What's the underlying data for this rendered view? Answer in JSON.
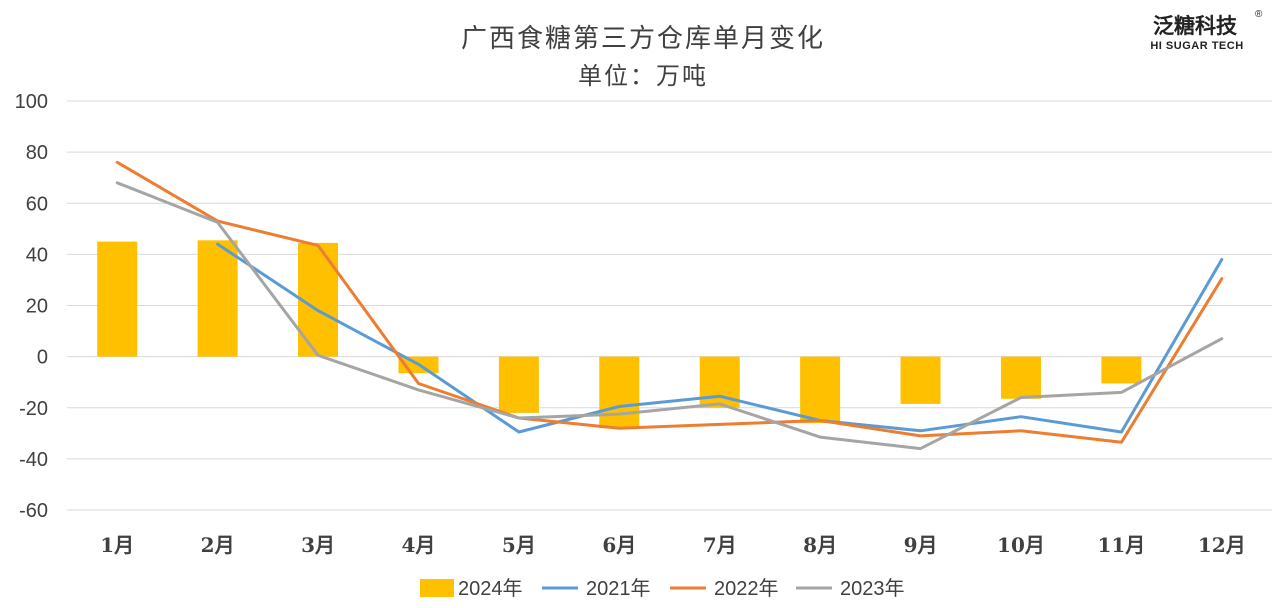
{
  "brand": {
    "name_cn": "泛糖科技",
    "name_en": "HI SUGAR TECH",
    "registered_mark": "®"
  },
  "chart_data": {
    "type": "bar",
    "title": "广西食糖第三方仓库单月变化",
    "subtitle": "单位：万吨",
    "categories": [
      "1月",
      "2月",
      "3月",
      "4月",
      "5月",
      "6月",
      "7月",
      "8月",
      "9月",
      "10月",
      "11月",
      "12月"
    ],
    "ylim": [
      -60,
      100
    ],
    "yticks": [
      100,
      80,
      60,
      40,
      20,
      0,
      -20,
      -40,
      -60
    ],
    "grid": true,
    "legend_position": "bottom",
    "series": [
      {
        "name": "2024年",
        "type": "bar",
        "color": "#FFC000",
        "values": [
          45,
          45.5,
          44.5,
          -6.5,
          -22,
          -28,
          -20,
          -26,
          -18.5,
          -16.5,
          -10.5,
          null
        ]
      },
      {
        "name": "2021年",
        "type": "line",
        "color": "#5B9BD5",
        "values": [
          null,
          44,
          18,
          -3,
          -29.5,
          -19.5,
          -15.5,
          -25,
          -29,
          -23.5,
          -29.5,
          38
        ]
      },
      {
        "name": "2022年",
        "type": "line",
        "color": "#ED7D31",
        "values": [
          76,
          53,
          43.5,
          -10.5,
          -24,
          -28,
          -26.5,
          -25,
          -31,
          -29,
          -33.5,
          30.5
        ]
      },
      {
        "name": "2023年",
        "type": "line",
        "color": "#A5A5A5",
        "values": [
          68,
          52.5,
          0.5,
          -13,
          -24,
          -22.5,
          -18.5,
          -31.5,
          -36,
          -16,
          -14,
          7
        ]
      }
    ]
  }
}
